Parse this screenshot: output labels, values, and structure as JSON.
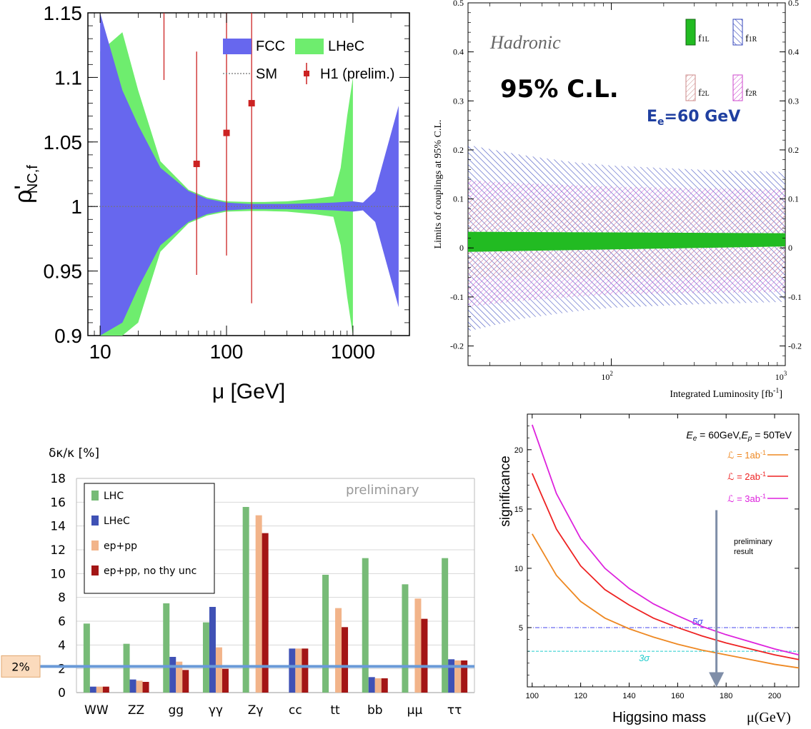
{
  "chart_data": [
    {
      "type": "area",
      "ylabel": "ρ'",
      "ylabel_sub": "NC,f",
      "xlabel": "μ [GeV]",
      "xscale": "log",
      "xlim": [
        8,
        2800
      ],
      "ylim": [
        0.9,
        1.15
      ],
      "xticks": [
        "10",
        "100",
        "1000"
      ],
      "yticks": [
        "0.9",
        "0.95",
        "1",
        "1.05",
        "1.1",
        "1.15"
      ],
      "legend": {
        "placement": "top-right",
        "entries": [
          "FCC",
          "LHeC",
          "SM",
          "H1 (prelim.)"
        ]
      },
      "colors": {
        "FCC": "#6767ee",
        "LHeC": "#6eed6e",
        "SM": "#888888",
        "H1": "#cc2222"
      },
      "series": [
        {
          "name": "LHeC",
          "x": [
            10,
            15,
            20,
            30,
            50,
            70,
            100,
            150,
            200,
            300,
            500,
            700,
            800,
            900,
            1000
          ],
          "upper": [
            1.12,
            1.135,
            1.09,
            1.035,
            1.013,
            1.007,
            1.004,
            1.0035,
            1.0035,
            1.004,
            1.006,
            1.008,
            1.03,
            1.07,
            1.1
          ],
          "lower": [
            0.88,
            0.865,
            0.91,
            0.965,
            0.987,
            0.993,
            0.996,
            0.9965,
            0.9965,
            0.996,
            0.994,
            0.992,
            0.97,
            0.93,
            0.9
          ]
        },
        {
          "name": "FCC",
          "x": [
            10,
            15,
            20,
            30,
            50,
            70,
            100,
            150,
            200,
            300,
            500,
            700,
            1000,
            1200,
            1500,
            2300
          ],
          "upper": [
            1.15,
            1.09,
            1.063,
            1.03,
            1.012,
            1.006,
            1.003,
            1.002,
            1.002,
            1.002,
            1.0025,
            1.003,
            1.004,
            1.003,
            1.012,
            1.078
          ],
          "lower": [
            0.85,
            0.91,
            0.937,
            0.97,
            0.988,
            0.994,
            0.997,
            0.998,
            0.998,
            0.998,
            0.9975,
            0.997,
            0.996,
            0.997,
            0.988,
            0.922
          ]
        },
        {
          "name": "SM",
          "x": [
            8,
            2800
          ],
          "y": [
            1,
            1
          ]
        },
        {
          "name": "H1 (prelim.)",
          "x": [
            58,
            100,
            158
          ],
          "y": [
            1.033,
            1.057,
            1.08
          ],
          "yerr_low": [
            0.947,
            0.962,
            0.925
          ],
          "yerr_high": [
            1.12,
            1.15,
            1.15
          ]
        }
      ],
      "extra_errorbar": {
        "x": 32,
        "y_low": 1.098,
        "y_high": 1.15
      }
    },
    {
      "type": "area",
      "ylabel": "Limits of couplings at 95% C.L.",
      "xlabel": "Integrated Luminosity [fb",
      "xlabel_sup": "-1",
      "xlabel_end": "]",
      "xscale": "log",
      "xlim": [
        15,
        1000
      ],
      "ylim": [
        -0.24,
        0.5
      ],
      "yticks": [
        "-0.2",
        "-0.1",
        "0",
        "0.1",
        "0.2",
        "0.3",
        "0.4",
        "0.5"
      ],
      "xtick_base": "10",
      "xtick_exps": [
        "2",
        "3"
      ],
      "annotations": {
        "channel": "Hadronic",
        "cl": "95% C.L.",
        "energy_main": "E",
        "energy_sub": "e",
        "energy_rest": "=60 GeV"
      },
      "legend": {
        "placement": "top-right",
        "entries": [
          {
            "name": "f",
            "sub": "1L"
          },
          {
            "name": "f",
            "sub": "1R"
          },
          {
            "name": "f",
            "sub": "2L"
          },
          {
            "name": "f",
            "sub": "2R"
          }
        ]
      },
      "series": [
        {
          "name": "f1R",
          "x": [
            15,
            30,
            60,
            100,
            300,
            1000
          ],
          "upper": [
            0.21,
            0.19,
            0.175,
            0.168,
            0.16,
            0.155
          ],
          "lower": [
            -0.17,
            -0.145,
            -0.13,
            -0.122,
            -0.115,
            -0.11
          ]
        },
        {
          "name": "f2R",
          "x": [
            15,
            30,
            60,
            100,
            300,
            1000
          ],
          "upper": [
            0.138,
            0.132,
            0.128,
            0.125,
            0.122,
            0.12
          ],
          "lower": [
            -0.12,
            -0.108,
            -0.1,
            -0.095,
            -0.092,
            -0.09
          ]
        },
        {
          "name": "f2L",
          "x": [
            15,
            30,
            60,
            100,
            300,
            1000
          ],
          "upper": [
            0.1,
            0.1,
            0.1,
            0.1,
            0.1,
            0.1
          ],
          "lower": [
            -0.06,
            -0.06,
            -0.06,
            -0.06,
            -0.06,
            -0.06
          ]
        },
        {
          "name": "f1L",
          "x": [
            15,
            1000
          ],
          "upper": [
            0.033,
            0.03
          ],
          "lower": [
            -0.008,
            0.003
          ]
        }
      ],
      "colors": {
        "f1L": "#22bb22",
        "f1R": "#3344bb",
        "f2L": "#cc8888",
        "f2R": "#cc44cc"
      }
    },
    {
      "type": "bar",
      "ylabel": "δκ/κ [%]",
      "categories": [
        "WW",
        "ZZ",
        "gg",
        "γγ",
        "Zγ",
        "cc",
        "tt",
        "bb",
        "μμ",
        "ττ"
      ],
      "ylim": [
        0,
        18
      ],
      "yticks": [
        "0",
        "2",
        "4",
        "6",
        "8",
        "10",
        "12",
        "14",
        "16",
        "18"
      ],
      "grid": true,
      "legend": {
        "placement": "top-left"
      },
      "annotation": "preliminary",
      "reference_line": {
        "label": "2%",
        "value": 2.2
      },
      "series": [
        {
          "name": "LHC",
          "color": "#77bb77",
          "values": [
            5.8,
            4.1,
            7.5,
            5.9,
            15.6,
            null,
            9.9,
            11.3,
            9.1,
            11.3
          ]
        },
        {
          "name": "LHeC",
          "color": "#3f51b5",
          "values": [
            0.5,
            1.1,
            3.0,
            7.2,
            null,
            3.7,
            null,
            1.3,
            null,
            2.8
          ]
        },
        {
          "name": "ep+pp",
          "color": "#f2b48a",
          "values": [
            0.5,
            1.0,
            2.6,
            3.8,
            14.9,
            3.7,
            7.1,
            1.2,
            7.9,
            2.7
          ]
        },
        {
          "name": "ep+pp, no thy unc",
          "color": "#a31515",
          "values": [
            0.5,
            0.9,
            1.9,
            2.0,
            13.4,
            3.7,
            5.5,
            1.2,
            6.2,
            2.7
          ]
        }
      ]
    },
    {
      "type": "line",
      "ylabel": "significance",
      "xlabel": "Higgsino mass",
      "xlabel_unit": "μ(GeV)",
      "xlim": [
        98,
        210
      ],
      "ylim": [
        0,
        23
      ],
      "xticks": [
        "100",
        "120",
        "140",
        "160",
        "180",
        "200"
      ],
      "yticks": [
        "5",
        "10",
        "15",
        "20"
      ],
      "title": "E_e = 60GeV,E_p = 50TeV",
      "title_parts": {
        "e1": "E",
        "s1": "e",
        "t1": " = 60GeV,",
        "e2": "E",
        "s2": "p",
        "t2": " = 50TeV"
      },
      "legend": {
        "placement": "top-right"
      },
      "annotation": {
        "line1": "preliminary",
        "line2": "result"
      },
      "series": [
        {
          "name": "1ab",
          "label_prefix": "ℒ = 1ab",
          "label_sup": "-1",
          "color": "#ee8822",
          "x": [
            100,
            110,
            120,
            130,
            140,
            150,
            160,
            170,
            180,
            190,
            200,
            210
          ],
          "y": [
            12.9,
            9.4,
            7.2,
            5.8,
            4.9,
            4.2,
            3.6,
            3.1,
            2.7,
            2.3,
            1.9,
            1.6
          ]
        },
        {
          "name": "2ab",
          "label_prefix": "ℒ = 2ab",
          "label_sup": "-1",
          "color": "#ee2222",
          "x": [
            100,
            110,
            120,
            130,
            140,
            150,
            160,
            170,
            180,
            190,
            200,
            210
          ],
          "y": [
            18.0,
            13.3,
            10.2,
            8.2,
            6.9,
            5.8,
            5.0,
            4.3,
            3.7,
            3.2,
            2.7,
            2.3
          ]
        },
        {
          "name": "3ab",
          "label_prefix": "ℒ = 3ab",
          "label_sup": "-1",
          "color": "#dd22dd",
          "x": [
            100,
            110,
            120,
            130,
            140,
            150,
            160,
            170,
            180,
            190,
            200,
            210
          ],
          "y": [
            22.1,
            16.3,
            12.5,
            10.0,
            8.3,
            7.0,
            6.0,
            5.1,
            4.4,
            3.8,
            3.2,
            2.7
          ]
        }
      ],
      "hlines": [
        {
          "label": "5σ",
          "value": 5,
          "color": "#4444ee"
        },
        {
          "label": "3σ",
          "value": 3,
          "color": "#22cccc"
        }
      ],
      "arrow": {
        "x": 176,
        "y_from": 14.9,
        "y_to": 0.6
      }
    }
  ]
}
